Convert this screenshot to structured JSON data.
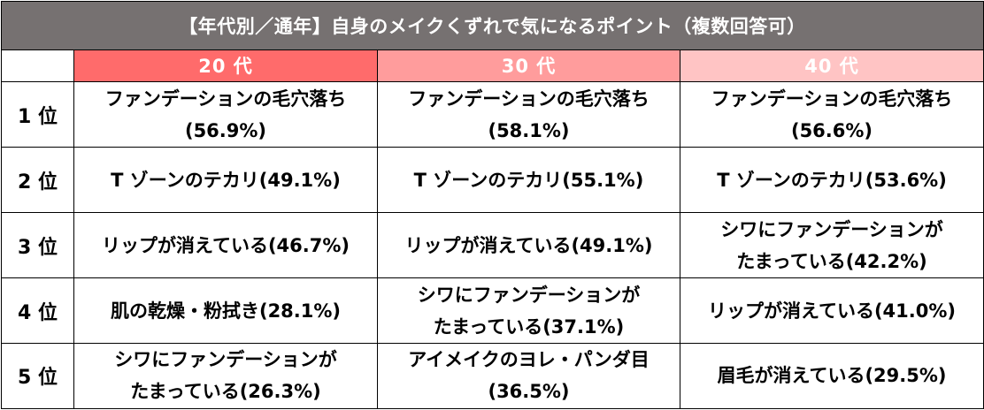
{
  "title": "【年代別／通年】自身のメイクくずれで気になるポイント（複数回答可）",
  "columns": [
    {
      "label": "20 代",
      "color": "#ff6b6b"
    },
    {
      "label": "30 代",
      "color": "#ff9c9c"
    },
    {
      "label": "40 代",
      "color": "#ffc4c4"
    }
  ],
  "rows": [
    {
      "rank": "1 位",
      "cells": [
        {
          "line1": "ファンデーションの毛穴落ち",
          "line2": "(56.9%)"
        },
        {
          "line1": "ファンデーションの毛穴落ち",
          "line2": "(58.1%)"
        },
        {
          "line1": "ファンデーションの毛穴落ち",
          "line2": "(56.6%)"
        }
      ]
    },
    {
      "rank": "2 位",
      "cells": [
        {
          "line1": "T ゾーンのテカリ(49.1%)",
          "line2": ""
        },
        {
          "line1": "T ゾーンのテカリ(55.1%)",
          "line2": ""
        },
        {
          "line1": "T ゾーンのテカリ(53.6%)",
          "line2": ""
        }
      ]
    },
    {
      "rank": "3 位",
      "cells": [
        {
          "line1": "リップが消えている(46.7%)",
          "line2": ""
        },
        {
          "line1": "リップが消えている(49.1%)",
          "line2": ""
        },
        {
          "line1": "シワにファンデーションが",
          "line2": "たまっている(42.2%)"
        }
      ]
    },
    {
      "rank": "4 位",
      "cells": [
        {
          "line1": "肌の乾燥・粉拭き(28.1%)",
          "line2": ""
        },
        {
          "line1": "シワにファンデーションが",
          "line2": "たまっている(37.1%)"
        },
        {
          "line1": "リップが消えている(41.0%)",
          "line2": ""
        }
      ]
    },
    {
      "rank": "5 位",
      "cells": [
        {
          "line1": "シワにファンデーションが",
          "line2": "たまっている(26.3%)"
        },
        {
          "line1": "アイメイクのヨレ・パンダ目",
          "line2": "(36.5%)"
        },
        {
          "line1": "眉毛が消えている(29.5%)",
          "line2": ""
        }
      ]
    }
  ]
}
